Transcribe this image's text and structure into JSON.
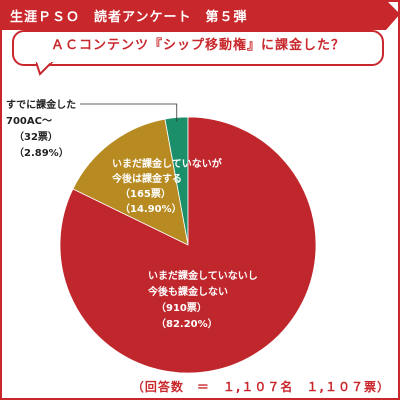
{
  "header": {
    "title": "生涯ＰＳＯ　読者アンケート　第５弾"
  },
  "question": "ＡＣコンテンツ『シップ移動権』に課金した？",
  "colors": {
    "accent": "#c8272c",
    "slice_red": "#c0272d",
    "slice_gold": "#b88b22",
    "slice_green": "#1a8f6a"
  },
  "chart_data": {
    "type": "pie",
    "title": "ＡＣコンテンツ『シップ移動権』に課金した？",
    "slices": [
      {
        "lines": [
          "すでに課金した",
          "700AC～",
          "（32票）",
          "（2.89%）"
        ],
        "votes": 32,
        "percent": 2.89,
        "color": "#1a8f6a"
      },
      {
        "lines": [
          "いまだ課金していないが",
          "今後は課金する",
          "（165票）",
          "（14.90%）"
        ],
        "votes": 165,
        "percent": 14.9,
        "color": "#b88b22"
      },
      {
        "lines": [
          "いまだ課金していないし",
          "今後も課金しない",
          "（910票）",
          "（82.20%）"
        ],
        "votes": 910,
        "percent": 82.2,
        "color": "#c0272d"
      }
    ]
  },
  "footer": {
    "total": "（回答数　＝　１,１０７名　１,１０７票）"
  }
}
